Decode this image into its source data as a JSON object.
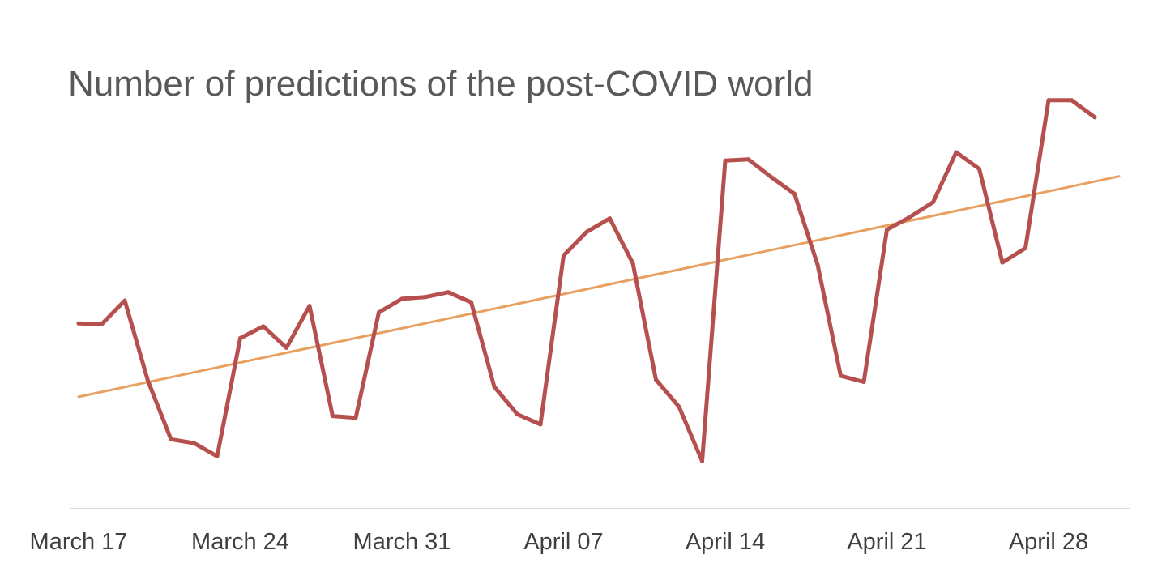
{
  "chart_data": {
    "type": "line",
    "title": "Number of predictions of the post-COVID world",
    "xlabel": "",
    "ylabel": "",
    "x_tick_labels": [
      "March 17",
      "March 24",
      "March 31",
      "April 07",
      "April 14",
      "April 21",
      "April 28"
    ],
    "x_tick_index": [
      0,
      7,
      14,
      21,
      28,
      35,
      42
    ],
    "y_axis_visible": false,
    "ylim": [
      0,
      100
    ],
    "grid": false,
    "legend": "none",
    "series": [
      {
        "color": "#b5504f",
        "values": [
          44.6,
          44.4,
          49.8,
          31.5,
          18.1,
          17.2,
          14.2,
          41.2,
          43.9,
          39.0,
          48.6,
          23.4,
          23.0,
          47.1,
          50.2,
          50.6,
          51.7,
          49.4,
          30.1,
          23.8,
          21.5,
          60.1,
          65.5,
          68.6,
          58.3,
          31.7,
          25.5,
          13.1,
          81.8,
          82.1,
          78.0,
          74.2,
          58.0,
          32.6,
          31.2,
          66.0,
          68.9,
          72.3,
          83.7,
          79.9,
          58.5,
          61.8,
          95.6,
          95.6,
          91.7
        ]
      },
      {
        "type": "linear-trendline",
        "color": "#e8a060",
        "start": 27.8,
        "end": 78.2
      }
    ]
  }
}
